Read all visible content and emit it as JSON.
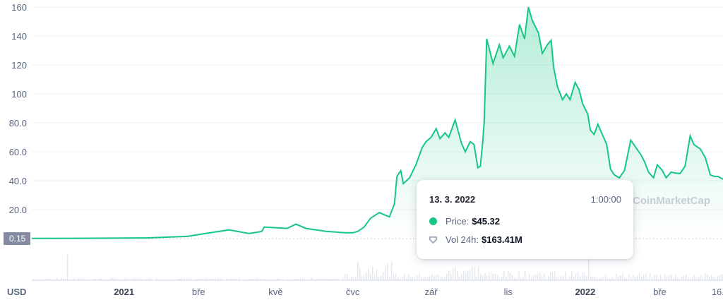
{
  "chart_data": {
    "type": "area",
    "currency_label": "USD",
    "current_price_label": "0.15",
    "watermark": "CoinMarketCap",
    "line_color": "#16c784",
    "y_ticks": [
      "160",
      "140",
      "120",
      "100",
      "80.0",
      "60.0",
      "40.0",
      "20.0"
    ],
    "ylim": [
      0,
      160
    ],
    "x_ticks": [
      {
        "label": "2021",
        "date": "2021-01-01",
        "bold": true
      },
      {
        "label": "bře",
        "date": "2021-03-01",
        "bold": false
      },
      {
        "label": "kvě",
        "date": "2021-05-01",
        "bold": false
      },
      {
        "label": "čvc",
        "date": "2021-07-01",
        "bold": false
      },
      {
        "label": "zář",
        "date": "2021-09-01",
        "bold": false
      },
      {
        "label": "lis",
        "date": "2021-11-01",
        "bold": false
      },
      {
        "label": "2022",
        "date": "2022-01-01",
        "bold": true
      },
      {
        "label": "bře",
        "date": "2022-03-01",
        "bold": false
      },
      {
        "label": "16.",
        "date": "2022-04-16",
        "bold": false
      }
    ],
    "series": [
      {
        "values": [
          [
            "2020-10-20",
            0.15
          ],
          [
            "2020-11-20",
            0.2
          ],
          [
            "2020-12-20",
            0.3
          ],
          [
            "2021-01-20",
            0.5
          ],
          [
            "2021-02-20",
            1.5
          ],
          [
            "2021-03-10",
            4
          ],
          [
            "2021-03-25",
            6
          ],
          [
            "2021-04-10",
            3.5
          ],
          [
            "2021-04-20",
            5
          ],
          [
            "2021-04-22",
            8
          ],
          [
            "2021-05-10",
            7
          ],
          [
            "2021-05-17",
            10
          ],
          [
            "2021-05-25",
            7
          ],
          [
            "2021-06-10",
            5
          ],
          [
            "2021-06-25",
            4
          ],
          [
            "2021-07-01",
            4
          ],
          [
            "2021-07-05",
            5
          ],
          [
            "2021-07-10",
            8
          ],
          [
            "2021-07-15",
            14
          ],
          [
            "2021-07-22",
            18
          ],
          [
            "2021-07-30",
            15
          ],
          [
            "2021-08-03",
            24
          ],
          [
            "2021-08-05",
            43
          ],
          [
            "2021-08-08",
            47
          ],
          [
            "2021-08-10",
            38
          ],
          [
            "2021-08-15",
            42
          ],
          [
            "2021-08-20",
            51
          ],
          [
            "2021-08-25",
            63
          ],
          [
            "2021-08-28",
            67
          ],
          [
            "2021-09-01",
            70
          ],
          [
            "2021-09-05",
            76
          ],
          [
            "2021-09-08",
            69
          ],
          [
            "2021-09-12",
            73
          ],
          [
            "2021-09-15",
            70
          ],
          [
            "2021-09-20",
            82
          ],
          [
            "2021-09-25",
            66
          ],
          [
            "2021-09-28",
            60
          ],
          [
            "2021-10-02",
            67
          ],
          [
            "2021-10-05",
            65
          ],
          [
            "2021-10-08",
            49
          ],
          [
            "2021-10-10",
            50
          ],
          [
            "2021-10-12",
            68
          ],
          [
            "2021-10-13",
            80
          ],
          [
            "2021-10-15",
            138
          ],
          [
            "2021-10-20",
            121
          ],
          [
            "2021-10-25",
            134
          ],
          [
            "2021-10-28",
            125
          ],
          [
            "2021-11-02",
            133
          ],
          [
            "2021-11-06",
            126
          ],
          [
            "2021-11-10",
            148
          ],
          [
            "2021-11-14",
            138
          ],
          [
            "2021-11-17",
            160
          ],
          [
            "2021-11-20",
            151
          ],
          [
            "2021-11-25",
            142
          ],
          [
            "2021-11-28",
            128
          ],
          [
            "2021-12-02",
            134
          ],
          [
            "2021-12-05",
            137
          ],
          [
            "2021-12-07",
            118
          ],
          [
            "2021-12-10",
            105
          ],
          [
            "2021-12-14",
            96
          ],
          [
            "2021-12-17",
            100
          ],
          [
            "2021-12-20",
            96
          ],
          [
            "2021-12-24",
            108
          ],
          [
            "2021-12-27",
            103
          ],
          [
            "2021-12-30",
            93
          ],
          [
            "2022-01-03",
            86
          ],
          [
            "2022-01-05",
            75
          ],
          [
            "2022-01-08",
            72
          ],
          [
            "2022-01-11",
            79
          ],
          [
            "2022-01-15",
            71
          ],
          [
            "2022-01-18",
            65
          ],
          [
            "2022-01-21",
            48
          ],
          [
            "2022-01-24",
            44
          ],
          [
            "2022-01-28",
            42
          ],
          [
            "2022-02-01",
            47
          ],
          [
            "2022-02-06",
            68
          ],
          [
            "2022-02-10",
            63
          ],
          [
            "2022-02-14",
            58
          ],
          [
            "2022-02-17",
            53
          ],
          [
            "2022-02-20",
            46
          ],
          [
            "2022-02-24",
            42
          ],
          [
            "2022-02-27",
            51
          ],
          [
            "2022-03-03",
            47
          ],
          [
            "2022-03-06",
            42
          ],
          [
            "2022-03-10",
            46
          ],
          [
            "2022-03-13",
            45.32
          ],
          [
            "2022-03-17",
            45
          ],
          [
            "2022-03-21",
            50
          ],
          [
            "2022-03-25",
            71
          ],
          [
            "2022-03-28",
            65
          ],
          [
            "2022-04-02",
            62
          ],
          [
            "2022-04-06",
            56
          ],
          [
            "2022-04-10",
            44
          ],
          [
            "2022-04-13",
            43
          ],
          [
            "2022-04-16",
            43
          ],
          [
            "2022-04-20",
            41
          ]
        ]
      }
    ]
  },
  "tooltip": {
    "date": "13. 3. 2022",
    "time": "1:00:00",
    "price_label": "Price:",
    "price_value": "$45.32",
    "vol_label": "Vol 24h:",
    "vol_value": "$163.41M",
    "price_color": "#16c784",
    "vol_color": "#a1a7bb"
  }
}
